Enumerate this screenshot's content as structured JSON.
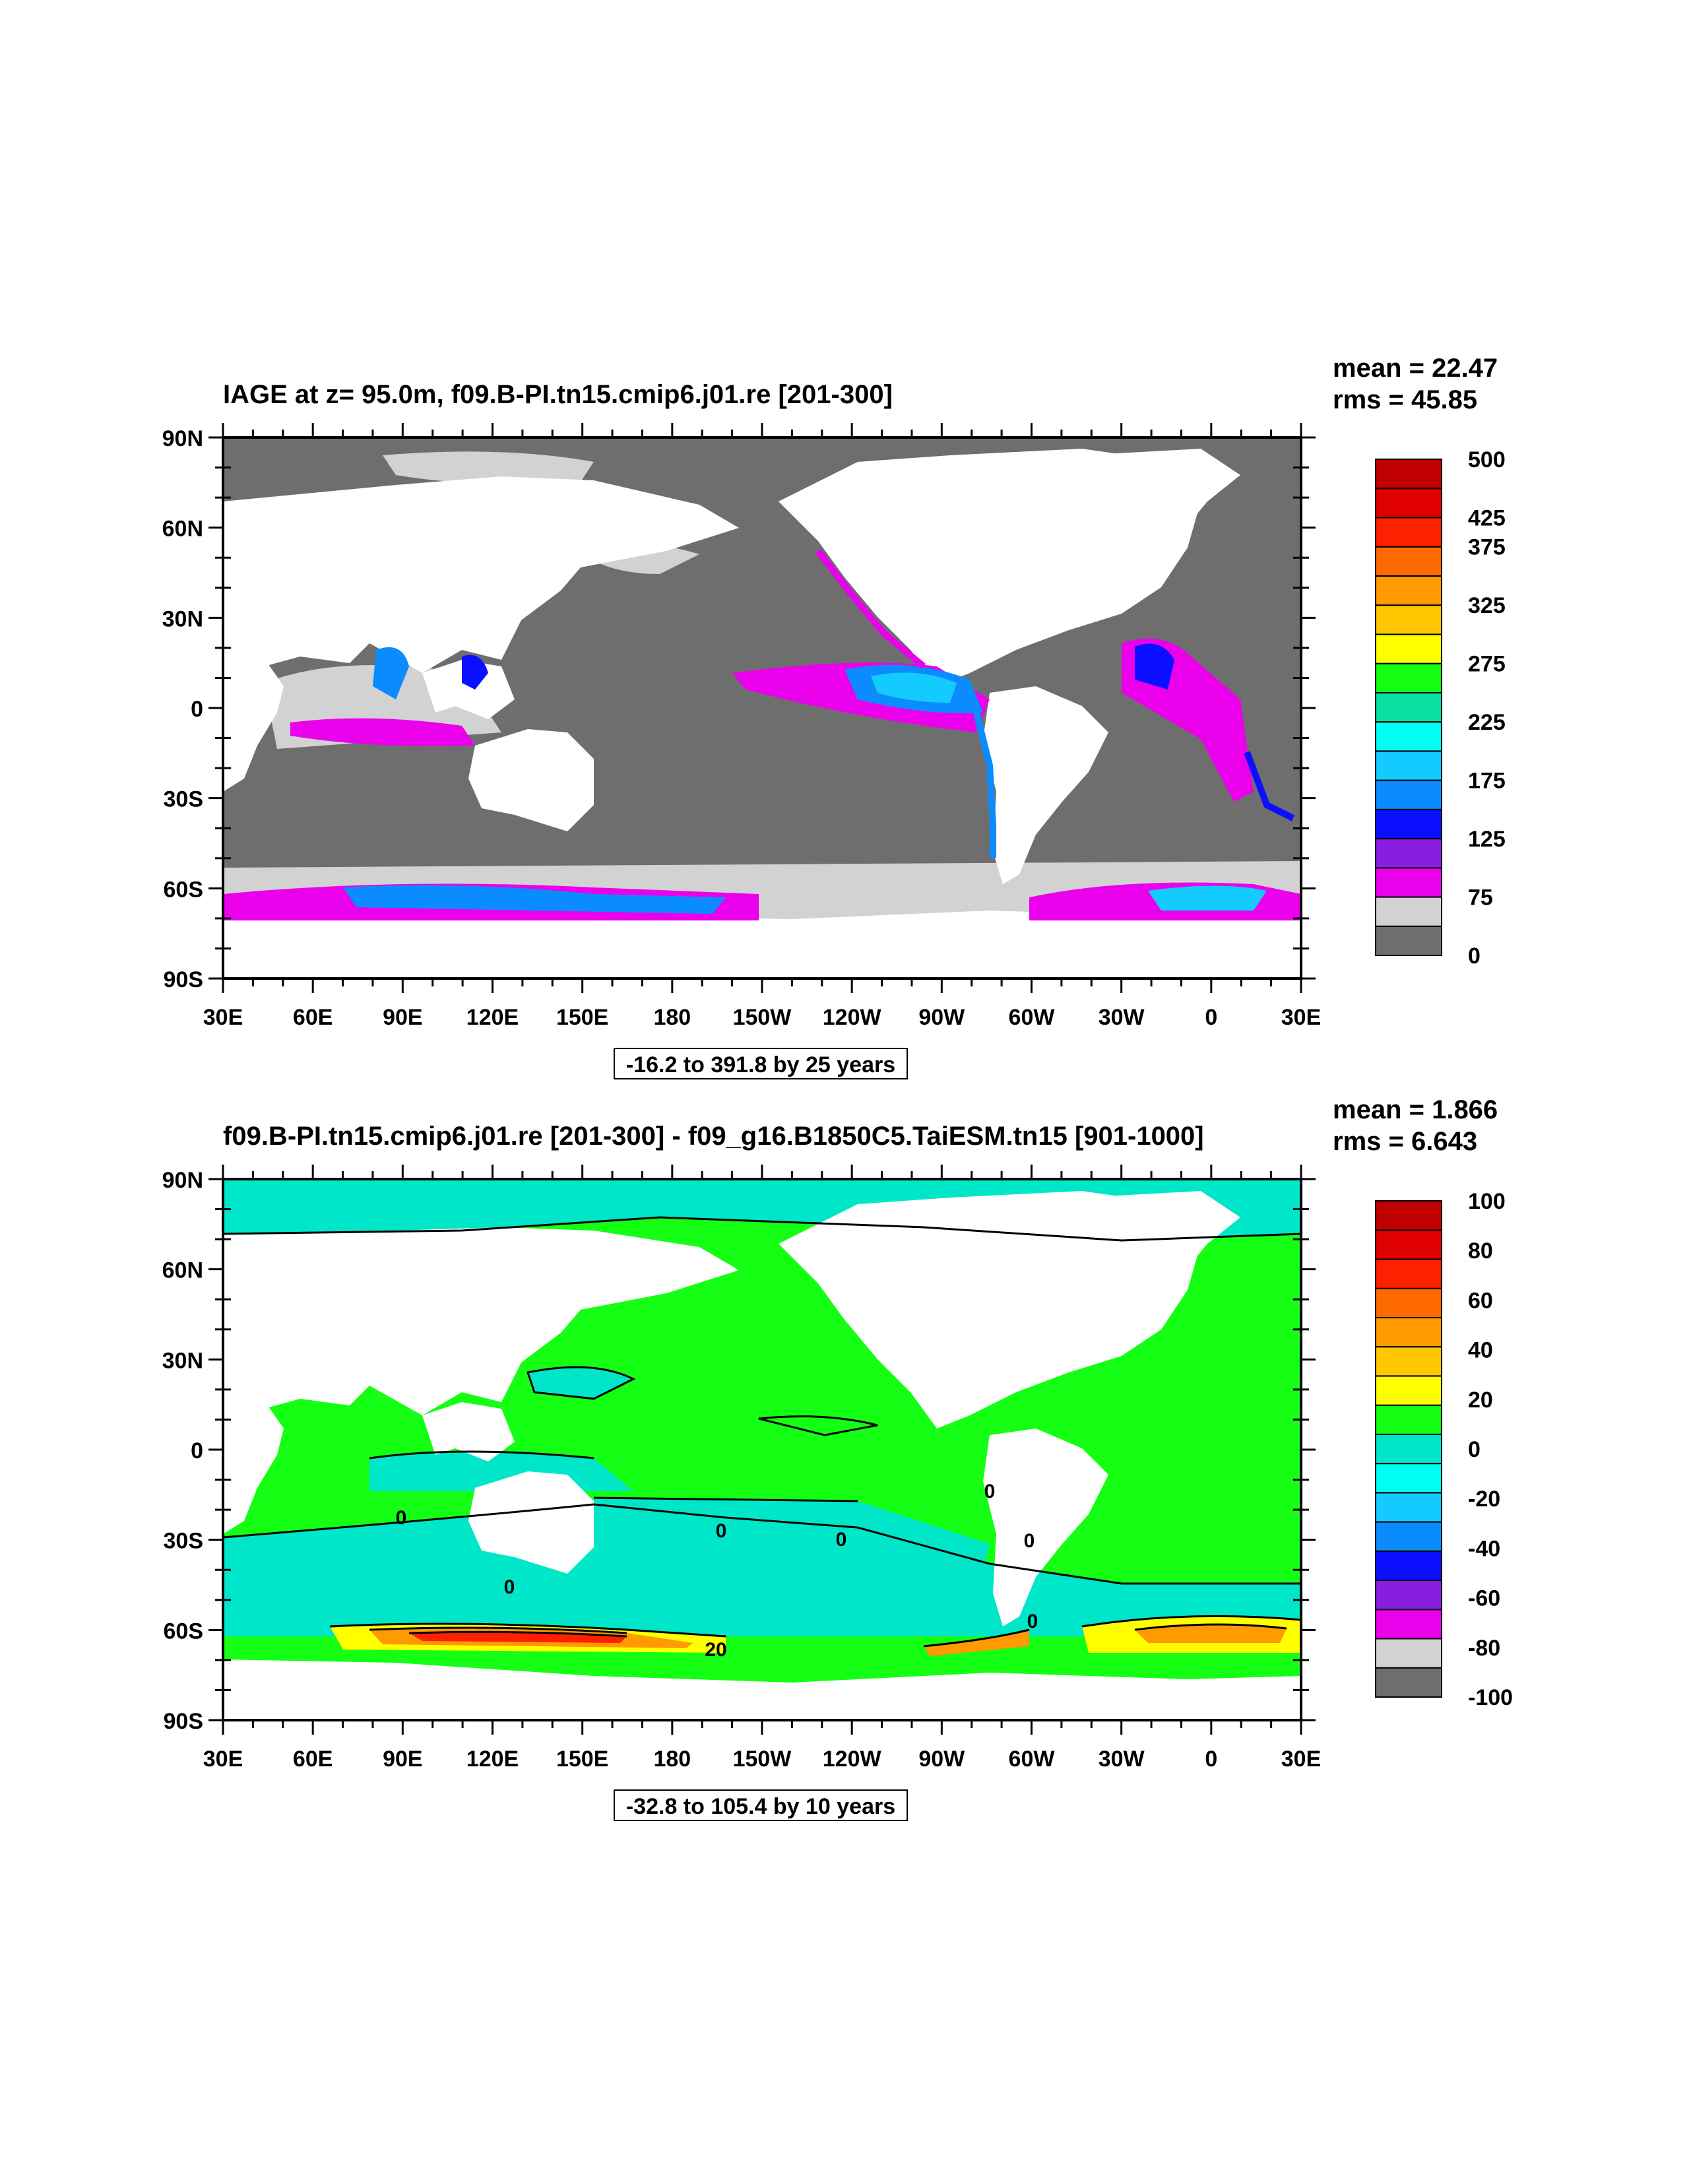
{
  "panels": [
    {
      "title": "IAGE at z=  95.0m, f09.B-PI.tn15.cmip6.j01.re [201-300]",
      "mean": "mean = 22.47",
      "rms": "rms = 45.85",
      "range_label": "-16.2 to 391.8 by 25 years",
      "colorbar": {
        "colors": [
          "#6e6e6e",
          "#d2d2d2",
          "#ea00ea",
          "#8a1ee0",
          "#0a10ff",
          "#0a8cff",
          "#14cbff",
          "#00fff0",
          "#0ae0a0",
          "#14ff14",
          "#ffff00",
          "#ffc800",
          "#ff9a00",
          "#ff6a00",
          "#ff2000",
          "#e00000",
          "#c00000"
        ],
        "labels": [
          "0",
          "75",
          "125",
          "175",
          "225",
          "275",
          "325",
          "375",
          "425",
          "500"
        ]
      }
    },
    {
      "title": "f09.B-PI.tn15.cmip6.j01.re [201-300] - f09_g16.B1850C5.TaiESM.tn15 [901-1000]",
      "mean": "mean = 1.866",
      "rms": "rms = 6.643",
      "range_label": "-32.8 to 105.4 by 10 years",
      "colorbar": {
        "colors": [
          "#6e6e6e",
          "#d2d2d2",
          "#ea00ea",
          "#8a1ee0",
          "#0a10ff",
          "#0a8cff",
          "#14cbff",
          "#00fff0",
          "#00e6c8",
          "#14ff14",
          "#ffff00",
          "#ffc800",
          "#ff9a00",
          "#ff6a00",
          "#ff2000",
          "#e00000",
          "#c00000"
        ],
        "labels": [
          "-100",
          "-80",
          "-60",
          "-40",
          "-20",
          "0",
          "20",
          "40",
          "60",
          "80",
          "100"
        ]
      }
    }
  ],
  "axes": {
    "lat_labels": [
      "90N",
      "60N",
      "30N",
      "0",
      "30S",
      "60S",
      "90S"
    ],
    "lon_labels": [
      "30E",
      "60E",
      "90E",
      "120E",
      "150E",
      "180",
      "150W",
      "120W",
      "90W",
      "60W",
      "30W",
      "0",
      "30E"
    ]
  },
  "contour_labels": [
    "0",
    "0",
    "0",
    "0",
    "0",
    "0",
    "20",
    "0"
  ]
}
